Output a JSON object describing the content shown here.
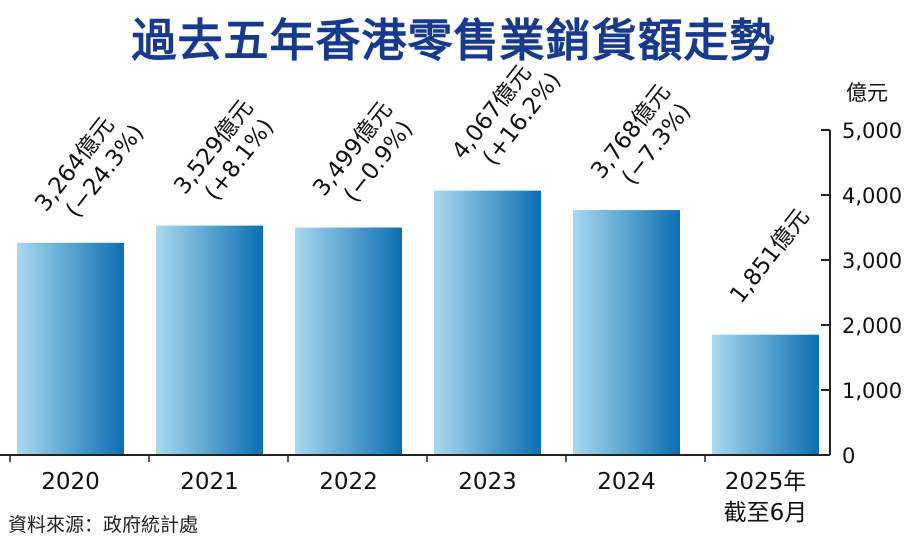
{
  "chart_data": {
    "type": "bar",
    "title": "過去五年香港零售業銷貨額走勢",
    "unit": "億元",
    "categories": [
      "2020",
      "2021",
      "2022",
      "2023",
      "2024",
      "2025年"
    ],
    "category_notes": [
      "",
      "",
      "",
      "",
      "",
      "截至6月"
    ],
    "values": [
      3264,
      3529,
      3499,
      4067,
      3768,
      1851
    ],
    "value_labels": [
      "3,264億元",
      "3,529億元",
      "3,499億元",
      "4,067億元",
      "3,768億元",
      "1,851億元"
    ],
    "change_labels": [
      "(−24.3%)",
      "(+8.1%)",
      "(−0.9%)",
      "(+16.2%)",
      "(−7.3%)",
      ""
    ],
    "yticks": [
      0,
      1000,
      2000,
      3000,
      4000,
      5000
    ],
    "ytick_labels": [
      "0",
      "1,000",
      "2,000",
      "3,000",
      "4,000",
      "5,000"
    ],
    "ylim": [
      0,
      5000
    ],
    "axis_side": "right",
    "grid": false
  },
  "source": "資料來源：政府統計處",
  "colors": {
    "title": "#173a8e",
    "bar_light": "#a9d9f0",
    "bar_dark": "#0a6fb2",
    "axis": "#222222"
  }
}
